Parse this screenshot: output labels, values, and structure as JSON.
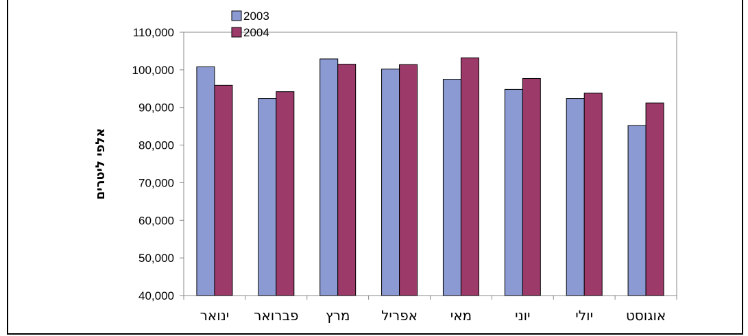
{
  "chart_data": {
    "type": "bar",
    "categories": [
      "ינואר",
      "פברואר",
      "מרץ",
      "אפריל",
      "מאי",
      "יוני",
      "יולי",
      "אוגוסט"
    ],
    "series": [
      {
        "name": "2003",
        "values": [
          100800,
          92400,
          102900,
          100200,
          97500,
          94800,
          92400,
          85200
        ],
        "color": "#8c9ad4"
      },
      {
        "name": "2004",
        "values": [
          95900,
          94200,
          101500,
          101400,
          103200,
          97700,
          93800,
          91200
        ],
        "color": "#9c3a6a"
      }
    ],
    "title": "",
    "xlabel": "",
    "ylabel": "אלפי ליטרים",
    "ylim": [
      40000,
      110000
    ],
    "yticks": [
      "40,000",
      "50,000",
      "60,000",
      "70,000",
      "80,000",
      "90,000",
      "100,000",
      "110,000"
    ],
    "grid": false,
    "legend_position": "top-left"
  }
}
